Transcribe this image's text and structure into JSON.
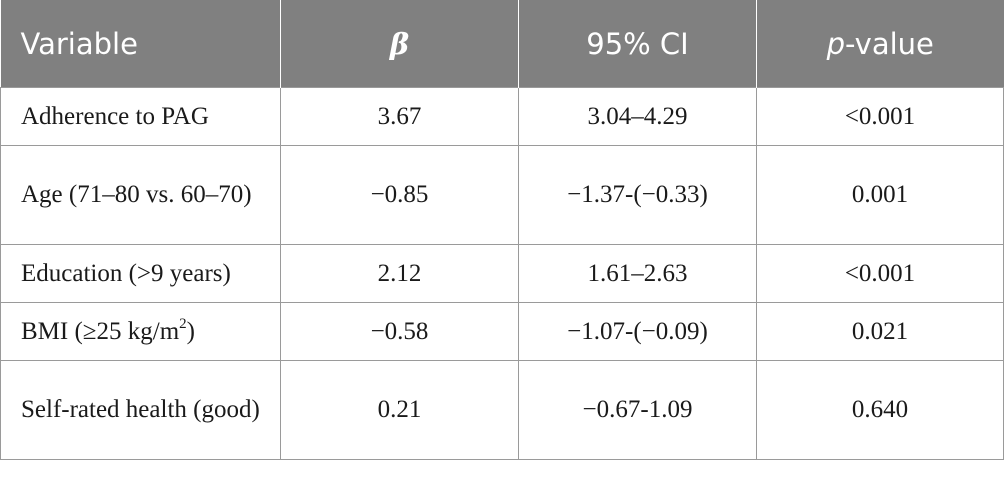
{
  "table": {
    "headers": {
      "variable": "Variable",
      "beta": "β",
      "ci": "95% CI",
      "p_prefix": "p",
      "p_suffix": "-value"
    },
    "rows": [
      {
        "variable": "Adherence to PAG",
        "beta": "3.67",
        "ci": "3.04–4.29",
        "p": "<0.001"
      },
      {
        "variable": "Age (71–80 vs. 60–70)",
        "beta": "−0.85",
        "ci": "−1.37-(−0.33)",
        "p": "0.001"
      },
      {
        "variable": "Education (>9 years)",
        "beta": "2.12",
        "ci": "1.61–2.63",
        "p": "<0.001"
      },
      {
        "variable_prefix": "BMI (≥25 kg/m",
        "variable_sup": "2",
        "variable_suffix": ")",
        "beta": "−0.58",
        "ci": "−1.07-(−0.09)",
        "p": "0.021"
      },
      {
        "variable": "Self-rated health (good)",
        "beta": "0.21",
        "ci": "−0.67-1.09",
        "p": "0.640"
      }
    ]
  },
  "colors": {
    "header_bg": "#808080",
    "header_text": "#ffffff",
    "border": "#9a9a9a",
    "body_text": "#1a1a1a"
  }
}
